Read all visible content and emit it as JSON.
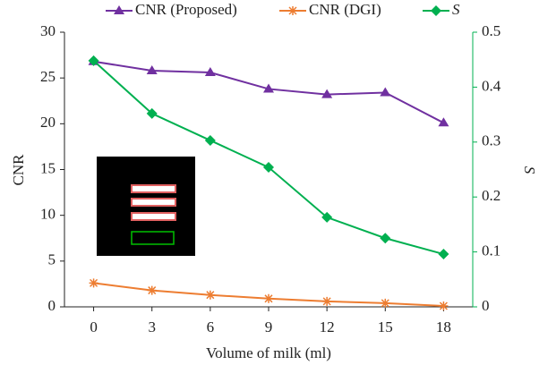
{
  "chart_data": {
    "type": "line",
    "x_label": "Volume of milk (ml)",
    "y_label": "CNR",
    "y2_label": "S",
    "categories": [
      "0",
      "3",
      "6",
      "9",
      "12",
      "15",
      "18"
    ],
    "series": [
      {
        "name": "CNR (Proposed)",
        "color": "#7030a0",
        "marker": "triangle",
        "values": [
          26.8,
          25.8,
          25.6,
          23.8,
          23.2,
          23.4,
          20.1
        ]
      },
      {
        "name": "CNR (DGI)",
        "color": "#ed7d31",
        "marker": "asterisk",
        "values": [
          2.6,
          1.8,
          1.3,
          0.9,
          0.6,
          0.4,
          0.1
        ]
      },
      {
        "name": "S",
        "color": "#00b050",
        "marker": "diamond",
        "axis": "y2",
        "values": [
          0.448,
          0.352,
          0.303,
          0.254,
          0.163,
          0.125,
          0.096
        ]
      }
    ],
    "ylim": [
      0,
      30
    ],
    "yticks": [
      0,
      5,
      10,
      15,
      20,
      25,
      30
    ],
    "y2lim": [
      0,
      0.5
    ],
    "y2ticks": [
      0,
      0.1,
      0.2,
      0.3,
      0.4,
      0.5
    ],
    "y2_color": "#00b050",
    "legend": "top"
  }
}
